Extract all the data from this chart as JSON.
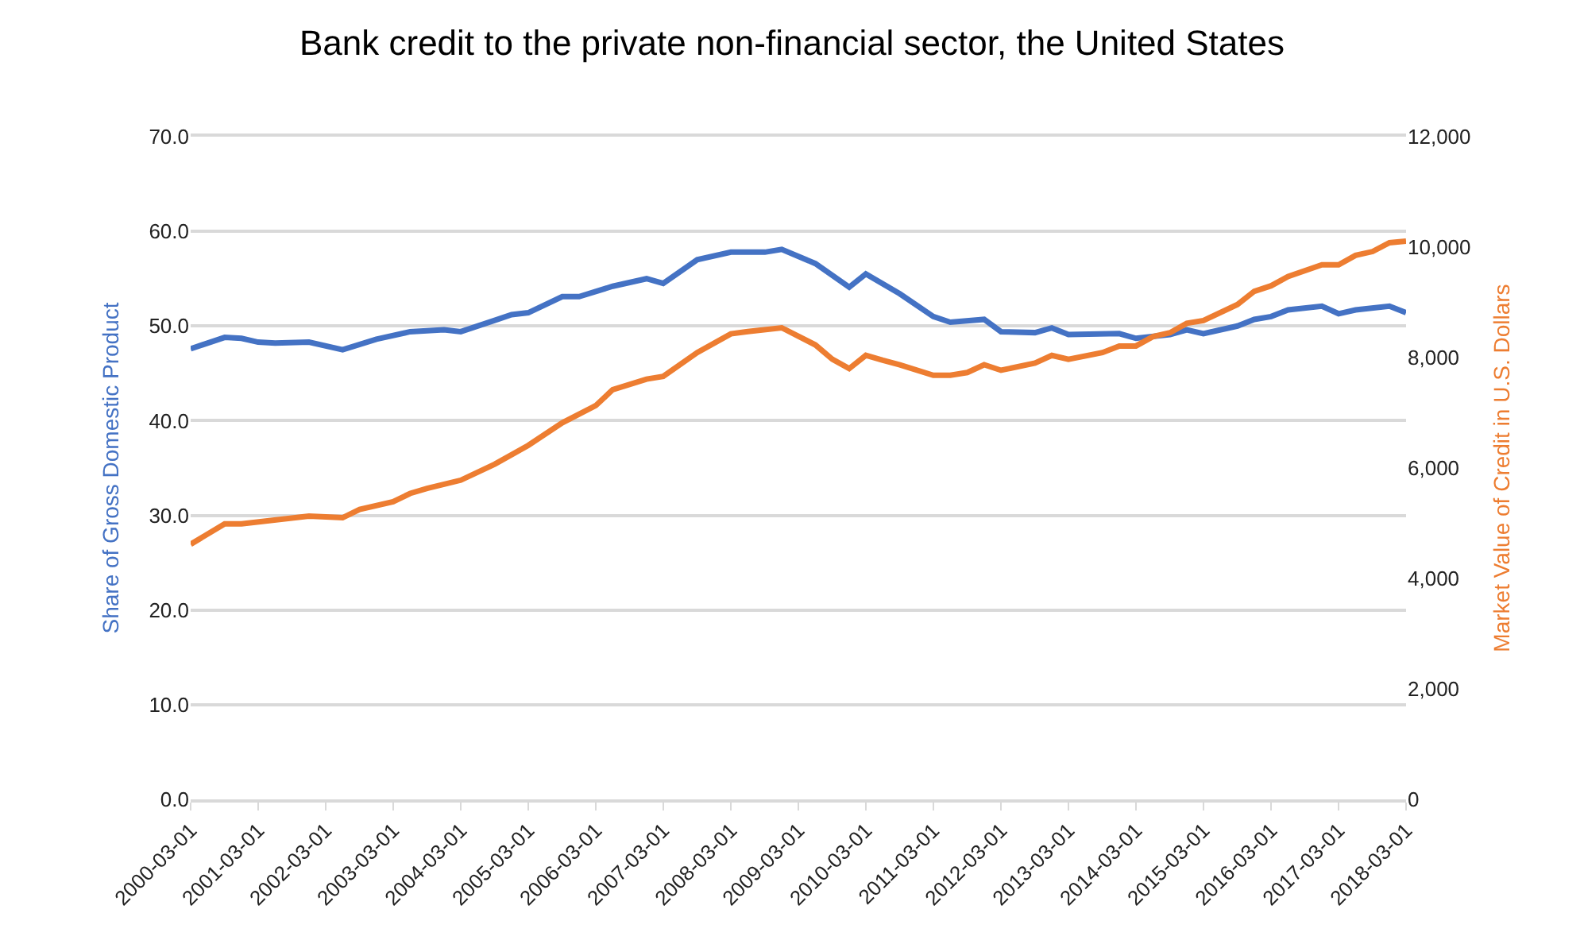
{
  "chart_data": {
    "type": "line",
    "title": "Bank credit to the private non-financial sector, the United States",
    "ylabel": "Share of Gross Domestic Product",
    "y2label": "Market Value of Credit in U.S. Dollars",
    "xlim": [
      "2000-03-01",
      "2018-03-01"
    ],
    "xticks": [
      "2000-03-01",
      "2001-03-01",
      "2002-03-01",
      "2003-03-01",
      "2004-03-01",
      "2005-03-01",
      "2006-03-01",
      "2007-03-01",
      "2008-03-01",
      "2009-03-01",
      "2010-03-01",
      "2011-03-01",
      "2012-03-01",
      "2013-03-01",
      "2014-03-01",
      "2015-03-01",
      "2016-03-01",
      "2017-03-01",
      "2018-03-01"
    ],
    "ylim": [
      0,
      70
    ],
    "yticks": [
      {
        "value": 0,
        "label": "0.0"
      },
      {
        "value": 10,
        "label": "10.0"
      },
      {
        "value": 20,
        "label": "20.0"
      },
      {
        "value": 30,
        "label": "30.0"
      },
      {
        "value": 40,
        "label": "40.0"
      },
      {
        "value": 50,
        "label": "50.0"
      },
      {
        "value": 60,
        "label": "60.0"
      },
      {
        "value": 70,
        "label": "70.0"
      }
    ],
    "y2lim": [
      0,
      12000
    ],
    "y2ticks": [
      0,
      {
        "value": 2000,
        "label": "2,000"
      },
      {
        "value": 4000,
        "label": "4,000"
      },
      {
        "value": 6000,
        "label": "6,000"
      },
      {
        "value": 8000,
        "label": "8,000"
      },
      {
        "value": 10000,
        "label": "10,000"
      },
      {
        "value": 12000,
        "label": "12,000"
      }
    ],
    "grid": "y",
    "marker": "none",
    "line_style": "solid",
    "series": [
      {
        "color": "#4472c4",
        "x": [
          "2000-03-01",
          "2000-09-01",
          "2000-12-01",
          "2001-03-01",
          "2001-06-01",
          "2001-12-01",
          "2002-06-01",
          "2002-12-01",
          "2003-06-01",
          "2003-12-01",
          "2004-03-01",
          "2004-09-01",
          "2004-12-01",
          "2005-03-01",
          "2005-09-01",
          "2005-12-01",
          "2006-06-01",
          "2006-12-01",
          "2007-03-01",
          "2007-09-01",
          "2008-03-01",
          "2008-09-01",
          "2008-12-01",
          "2009-06-01",
          "2009-12-01",
          "2010-03-01",
          "2010-09-01",
          "2011-03-01",
          "2011-06-01",
          "2011-12-01",
          "2012-03-01",
          "2012-09-01",
          "2012-12-01",
          "2013-03-01",
          "2013-12-01",
          "2014-03-01",
          "2014-09-01",
          "2014-12-01",
          "2015-03-01",
          "2015-09-01",
          "2015-12-01",
          "2016-03-01",
          "2016-06-01",
          "2016-12-01",
          "2017-03-01",
          "2017-06-01",
          "2017-12-01",
          "2018-03-01"
        ],
        "values": [
          47.6,
          48.8,
          48.7,
          48.3,
          48.2,
          48.3,
          47.5,
          48.6,
          49.4,
          49.6,
          49.4,
          50.6,
          51.2,
          51.4,
          53.1,
          53.1,
          54.2,
          55.0,
          54.5,
          57.0,
          57.8,
          57.8,
          58.1,
          56.6,
          54.1,
          55.5,
          53.4,
          51.0,
          50.4,
          50.7,
          49.4,
          49.3,
          49.8,
          49.1,
          49.2,
          48.7,
          49.1,
          49.6,
          49.2,
          50.0,
          50.7,
          51.0,
          51.7,
          52.1,
          51.3,
          51.7,
          52.1,
          51.4
        ]
      },
      {
        "color": "#ed7d31",
        "axis": "y2",
        "x": [
          "2000-03-01",
          "2000-09-01",
          "2000-12-01",
          "2001-12-01",
          "2002-06-01",
          "2002-09-01",
          "2003-03-01",
          "2003-06-01",
          "2003-09-01",
          "2004-03-01",
          "2004-09-01",
          "2005-03-01",
          "2005-09-01",
          "2006-03-01",
          "2006-06-01",
          "2006-12-01",
          "2007-03-01",
          "2007-09-01",
          "2008-03-01",
          "2008-06-01",
          "2008-12-01",
          "2009-06-01",
          "2009-09-01",
          "2009-12-01",
          "2010-03-01",
          "2010-06-01",
          "2010-09-01",
          "2011-03-01",
          "2011-06-01",
          "2011-09-01",
          "2011-12-01",
          "2012-03-01",
          "2012-09-01",
          "2012-12-01",
          "2013-03-01",
          "2013-09-01",
          "2013-12-01",
          "2014-03-01",
          "2014-06-01",
          "2014-09-01",
          "2014-12-01",
          "2015-03-01",
          "2015-09-01",
          "2015-12-01",
          "2016-03-01",
          "2016-06-01",
          "2016-12-01",
          "2017-03-01",
          "2017-06-01",
          "2017-09-01",
          "2017-12-01",
          "2018-03-01"
        ],
        "values": [
          4620,
          4990,
          4990,
          5130,
          5100,
          5250,
          5390,
          5540,
          5630,
          5780,
          6070,
          6410,
          6820,
          7130,
          7420,
          7610,
          7660,
          8090,
          8430,
          8470,
          8540,
          8230,
          7970,
          7800,
          8040,
          7950,
          7870,
          7680,
          7680,
          7730,
          7870,
          7770,
          7900,
          8040,
          7970,
          8090,
          8210,
          8210,
          8380,
          8450,
          8620,
          8670,
          8960,
          9200,
          9300,
          9470,
          9680,
          9680,
          9850,
          9920,
          10080,
          10110
        ]
      }
    ]
  }
}
